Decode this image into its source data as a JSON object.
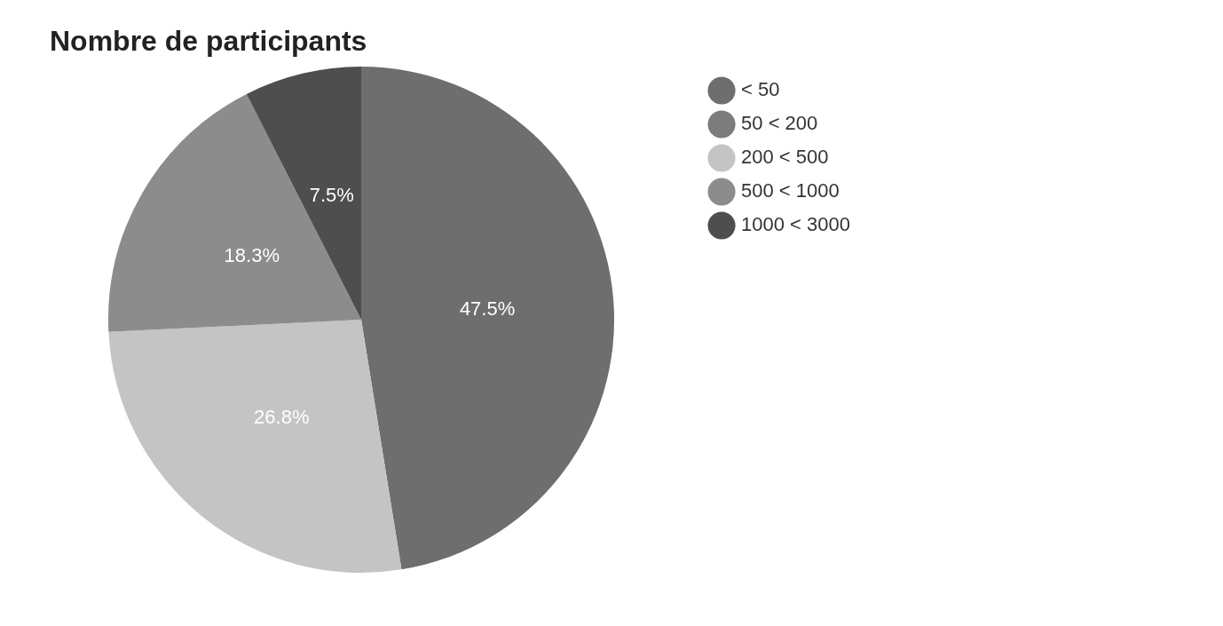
{
  "chart_data": {
    "type": "pie",
    "title": "Nombre de participants",
    "categories": [
      "< 50",
      "50 < 200",
      "200 < 500",
      "500 < 1000",
      "1000 < 3000"
    ],
    "values": [
      47.5,
      0,
      26.8,
      18.3,
      7.5
    ],
    "colors": [
      "#6e6e6e",
      "#7c7c7c",
      "#c4c4c4",
      "#8c8c8c",
      "#4e4e4e"
    ],
    "value_labels": [
      "47.5%",
      null,
      "26.8%",
      "18.3%",
      "7.5%"
    ],
    "legend": "right"
  }
}
